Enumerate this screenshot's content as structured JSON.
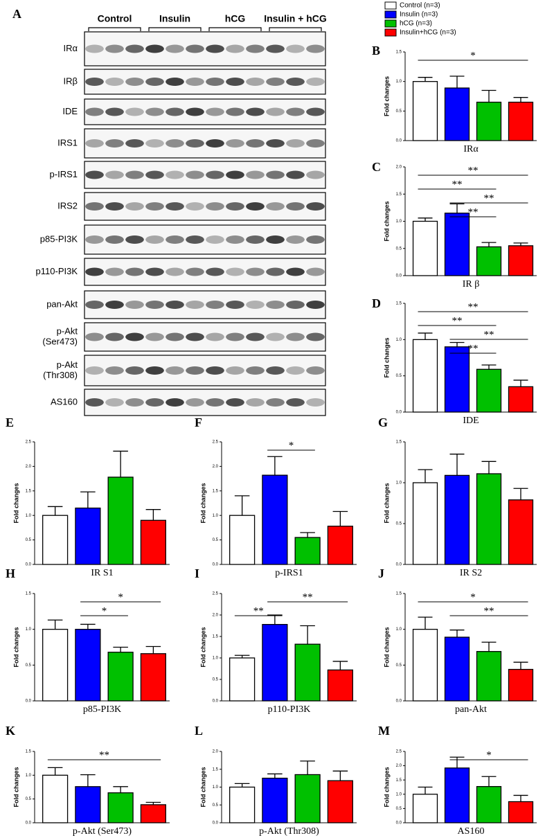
{
  "blot": {
    "panel": "A",
    "groups": [
      "Control",
      "Insulin",
      "hCG",
      "Insulin + hCG"
    ],
    "rows": [
      [
        "IRα"
      ],
      [
        "IRβ"
      ],
      [
        "IDE"
      ],
      [
        "IRS1"
      ],
      [
        "p-IRS1"
      ],
      [
        "IRS2"
      ],
      [
        "p85-PI3K"
      ],
      [
        "p110-PI3K"
      ],
      [
        "pan-Akt"
      ],
      [
        "p-Akt",
        "(Ser473)"
      ],
      [
        "p-Akt",
        "(Thr308)"
      ],
      [
        "AS160"
      ]
    ]
  },
  "legend": [
    {
      "name": "Control (n=3)",
      "color": "#ffffff"
    },
    {
      "name": "Insulin (n=3)",
      "color": "#0000ff"
    },
    {
      "name": "hCG (n=3)",
      "color": "#00c000"
    },
    {
      "name": "Insulin+hCG (n=3)",
      "color": "#ff0000"
    }
  ],
  "chart_data": [
    {
      "type": "bar",
      "panel": "B",
      "xlabel": "IRα",
      "ylabel": "Fold changes",
      "values": [
        1.0,
        0.89,
        0.65,
        0.65
      ],
      "errors": [
        0.07,
        0.2,
        0.2,
        0.08
      ],
      "ylim": [
        0,
        1.5
      ],
      "yticks": [
        {
          "value": 0,
          "label": "0.0"
        },
        {
          "value": 0.5,
          "label": "0.5"
        },
        {
          "value": 1,
          "label": "1.0"
        },
        {
          "value": 1.5,
          "label": "1.5"
        }
      ],
      "annotations": [
        {
          "label": "*",
          "pair": [
            0,
            3
          ]
        }
      ]
    },
    {
      "type": "bar",
      "panel": "C",
      "xlabel": "IR β",
      "ylabel": "Fold changes",
      "values": [
        1.0,
        1.15,
        0.53,
        0.55
      ],
      "errors": [
        0.06,
        0.17,
        0.08,
        0.05
      ],
      "ylim": [
        0,
        2
      ],
      "yticks": [
        {
          "value": 0,
          "label": "0.0"
        },
        {
          "value": 0.5,
          "label": "0.5"
        },
        {
          "value": 1,
          "label": "1.0"
        },
        {
          "value": 1.5,
          "label": "1.5"
        },
        {
          "value": 2,
          "label": "2.0"
        }
      ],
      "annotations": [
        {
          "label": "**",
          "pair": [
            0,
            3
          ]
        },
        {
          "label": "**",
          "pair": [
            0,
            2
          ]
        },
        {
          "label": "**",
          "pair": [
            1,
            3
          ]
        },
        {
          "label": "**",
          "pair": [
            1,
            2
          ]
        }
      ]
    },
    {
      "type": "bar",
      "panel": "D",
      "xlabel": "IDE",
      "ylabel": "Fold changes",
      "values": [
        1.0,
        0.9,
        0.59,
        0.35
      ],
      "errors": [
        0.09,
        0.06,
        0.06,
        0.09
      ],
      "ylim": [
        0,
        1.5
      ],
      "yticks": [
        {
          "value": 0,
          "label": "0.0"
        },
        {
          "value": 0.5,
          "label": "0.5"
        },
        {
          "value": 1,
          "label": "1.0"
        },
        {
          "value": 1.5,
          "label": "1.5"
        }
      ],
      "annotations": [
        {
          "label": "**",
          "pair": [
            0,
            3
          ]
        },
        {
          "label": "**",
          "pair": [
            0,
            2
          ]
        },
        {
          "label": "**",
          "pair": [
            1,
            3
          ]
        },
        {
          "label": "**",
          "pair": [
            1,
            2
          ]
        }
      ]
    },
    {
      "type": "bar",
      "panel": "E",
      "xlabel": "IR S1",
      "ylabel": "Fold changes",
      "values": [
        1.0,
        1.15,
        1.78,
        0.9
      ],
      "errors": [
        0.18,
        0.33,
        0.53,
        0.22
      ],
      "ylim": [
        0,
        2.5
      ],
      "yticks": [
        {
          "value": 0,
          "label": "0.0"
        },
        {
          "value": 0.5,
          "label": "0.5"
        },
        {
          "value": 1,
          "label": "1.0"
        },
        {
          "value": 1.5,
          "label": "1.5"
        },
        {
          "value": 2,
          "label": "2.0"
        },
        {
          "value": 2.5,
          "label": "2.5"
        }
      ],
      "annotations": []
    },
    {
      "type": "bar",
      "panel": "F",
      "xlabel": "p-IRS1",
      "ylabel": "Fold changes",
      "values": [
        1.0,
        1.82,
        0.55,
        0.78
      ],
      "errors": [
        0.4,
        0.38,
        0.1,
        0.3
      ],
      "ylim": [
        0,
        2.5
      ],
      "yticks": [
        {
          "value": 0,
          "label": "0.0"
        },
        {
          "value": 0.5,
          "label": "0.5"
        },
        {
          "value": 1,
          "label": "1.0"
        },
        {
          "value": 1.5,
          "label": "1.5"
        },
        {
          "value": 2,
          "label": "2.0"
        },
        {
          "value": 2.5,
          "label": "2.5"
        }
      ],
      "annotations": [
        {
          "label": "*",
          "pair": [
            1,
            2
          ]
        }
      ]
    },
    {
      "type": "bar",
      "panel": "G",
      "xlabel": "IR S2",
      "ylabel": "Fold changes",
      "values": [
        1.0,
        1.09,
        1.11,
        0.79
      ],
      "errors": [
        0.16,
        0.26,
        0.15,
        0.14
      ],
      "ylim": [
        0,
        1.5
      ],
      "yticks": [
        {
          "value": 0,
          "label": "0.0"
        },
        {
          "value": 0.5,
          "label": "0.5"
        },
        {
          "value": 1,
          "label": "1.0"
        },
        {
          "value": 1.5,
          "label": "1.5"
        }
      ],
      "annotations": []
    },
    {
      "type": "bar",
      "panel": "H",
      "xlabel": "p85-PI3K",
      "ylabel": "Fold changes",
      "values": [
        1.0,
        1.0,
        0.68,
        0.66
      ],
      "errors": [
        0.13,
        0.07,
        0.07,
        0.1
      ],
      "ylim": [
        0,
        1.5
      ],
      "yticks": [
        {
          "value": 0,
          "label": "0.0"
        },
        {
          "value": 0.5,
          "label": "0.5"
        },
        {
          "value": 1,
          "label": "1.0"
        },
        {
          "value": 1.5,
          "label": "1.5"
        }
      ],
      "annotations": [
        {
          "label": "*",
          "pair": [
            1,
            3
          ]
        },
        {
          "label": "*",
          "pair": [
            1,
            2
          ]
        }
      ]
    },
    {
      "type": "bar",
      "panel": "I",
      "xlabel": "p110-PI3K",
      "ylabel": "Fold changes",
      "values": [
        1.0,
        1.78,
        1.32,
        0.72
      ],
      "errors": [
        0.06,
        0.22,
        0.43,
        0.2
      ],
      "ylim": [
        0,
        2.5
      ],
      "yticks": [
        {
          "value": 0,
          "label": "0.0"
        },
        {
          "value": 0.5,
          "label": "0.5"
        },
        {
          "value": 1,
          "label": "1.0"
        },
        {
          "value": 1.5,
          "label": "1.5"
        },
        {
          "value": 2,
          "label": "2.0"
        },
        {
          "value": 2.5,
          "label": "2.5"
        }
      ],
      "annotations": [
        {
          "label": "**",
          "pair": [
            1,
            3
          ]
        },
        {
          "label": "**",
          "pair": [
            0,
            1
          ]
        }
      ]
    },
    {
      "type": "bar",
      "panel": "J",
      "xlabel": "pan-Akt",
      "ylabel": "Fold changes",
      "values": [
        1.0,
        0.89,
        0.69,
        0.44
      ],
      "errors": [
        0.17,
        0.1,
        0.13,
        0.1
      ],
      "ylim": [
        0,
        1.5
      ],
      "yticks": [
        {
          "value": 0,
          "label": "0.0"
        },
        {
          "value": 0.5,
          "label": "0.5"
        },
        {
          "value": 1,
          "label": "1.0"
        },
        {
          "value": 1.5,
          "label": "1.5"
        }
      ],
      "annotations": [
        {
          "label": "*",
          "pair": [
            0,
            3
          ]
        },
        {
          "label": "**",
          "pair": [
            1,
            3
          ]
        }
      ]
    },
    {
      "type": "bar",
      "panel": "K",
      "xlabel": "p-Akt (Ser473)",
      "ylabel": "Fold changes",
      "values": [
        1.0,
        0.76,
        0.63,
        0.38
      ],
      "errors": [
        0.16,
        0.25,
        0.13,
        0.05
      ],
      "ylim": [
        0,
        1.5
      ],
      "yticks": [
        {
          "value": 0,
          "label": "0.0"
        },
        {
          "value": 0.5,
          "label": "0.5"
        },
        {
          "value": 1,
          "label": "1.0"
        },
        {
          "value": 1.5,
          "label": "1.5"
        }
      ],
      "annotations": [
        {
          "label": "**",
          "pair": [
            0,
            3
          ]
        }
      ]
    },
    {
      "type": "bar",
      "panel": "L",
      "xlabel": "p-Akt (Thr308)",
      "ylabel": "Fold changes",
      "values": [
        1.0,
        1.25,
        1.35,
        1.18
      ],
      "errors": [
        0.1,
        0.12,
        0.38,
        0.27
      ],
      "ylim": [
        0,
        2
      ],
      "yticks": [
        {
          "value": 0,
          "label": "0.0"
        },
        {
          "value": 0.5,
          "label": "0.5"
        },
        {
          "value": 1,
          "label": "1.0"
        },
        {
          "value": 1.5,
          "label": "1.5"
        },
        {
          "value": 2,
          "label": "2.0"
        }
      ],
      "annotations": []
    },
    {
      "type": "bar",
      "panel": "M",
      "xlabel": "AS160",
      "ylabel": "Fold changes",
      "values": [
        1.0,
        1.92,
        1.27,
        0.74
      ],
      "errors": [
        0.25,
        0.38,
        0.35,
        0.22
      ],
      "ylim": [
        0,
        2.5
      ],
      "yticks": [
        {
          "value": 0,
          "label": "0.0"
        },
        {
          "value": 0.5,
          "label": "0.5"
        },
        {
          "value": 1,
          "label": "1.0"
        },
        {
          "value": 1.5,
          "label": "1.5"
        },
        {
          "value": 2,
          "label": "2.0"
        },
        {
          "value": 2.5,
          "label": "2.5"
        }
      ],
      "annotations": [
        {
          "label": "*",
          "pair": [
            1,
            3
          ]
        }
      ]
    }
  ]
}
